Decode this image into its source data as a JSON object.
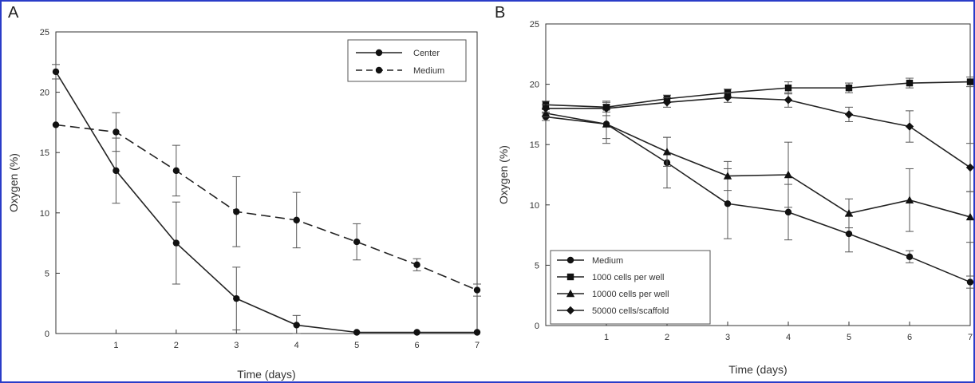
{
  "colors": {
    "frame": "#2a3cc8",
    "ink": "#333333",
    "plot_bg": "#ffffff"
  },
  "chart_data": [
    {
      "panel": "A",
      "type": "line",
      "xlabel": "Time (days)",
      "ylabel": "Oxygen (%)",
      "xlim": [
        0,
        7
      ],
      "ylim": [
        0,
        25
      ],
      "x_ticks": [
        1,
        2,
        3,
        4,
        5,
        6,
        7
      ],
      "y_ticks": [
        0,
        5,
        10,
        15,
        20,
        25
      ],
      "grid": false,
      "legend_position": "top-right",
      "x": [
        0,
        1,
        2,
        3,
        4,
        5,
        6,
        7
      ],
      "series": [
        {
          "name": "Center",
          "line_style": "solid",
          "marker": "circle",
          "values": [
            21.7,
            13.5,
            7.5,
            2.9,
            0.7,
            0.1,
            0.1,
            0.1
          ],
          "errors": [
            0.6,
            2.7,
            3.4,
            2.6,
            0.8,
            0,
            0,
            0
          ]
        },
        {
          "name": "Medium",
          "line_style": "dashed",
          "marker": "circle",
          "values": [
            17.3,
            16.7,
            13.5,
            10.1,
            9.4,
            7.6,
            5.7,
            3.6
          ],
          "errors": [
            0,
            1.6,
            2.1,
            2.9,
            2.3,
            1.5,
            0.5,
            0.5
          ]
        }
      ]
    },
    {
      "panel": "B",
      "type": "line",
      "xlabel": "Time (days)",
      "ylabel": "Oxygen (%)",
      "xlim": [
        0,
        7
      ],
      "ylim": [
        0,
        25
      ],
      "x_ticks": [
        1,
        2,
        3,
        4,
        5,
        6,
        7
      ],
      "y_ticks": [
        0,
        5,
        10,
        15,
        20,
        25
      ],
      "grid": false,
      "legend_position": "bottom-left",
      "x": [
        0,
        1,
        2,
        3,
        4,
        5,
        6,
        7
      ],
      "series": [
        {
          "name": "Medium",
          "marker": "circle",
          "values": [
            17.3,
            16.7,
            13.5,
            10.1,
            9.4,
            7.6,
            5.7,
            3.6
          ],
          "errors": [
            0.3,
            1.6,
            2.1,
            2.9,
            2.3,
            1.5,
            0.5,
            0.5
          ]
        },
        {
          "name": "1000 cells per well",
          "marker": "square",
          "values": [
            18.3,
            18.1,
            18.8,
            19.3,
            19.7,
            19.7,
            20.1,
            20.2
          ],
          "errors": [
            0.3,
            0.4,
            0.3,
            0.3,
            0.5,
            0.4,
            0.4,
            0.4
          ]
        },
        {
          "name": "10000 cells per well",
          "marker": "triangle",
          "values": [
            17.6,
            16.7,
            14.4,
            12.4,
            12.5,
            9.3,
            10.4,
            9.0
          ],
          "errors": [
            0.3,
            1.2,
            1.2,
            1.2,
            2.7,
            1.2,
            2.6,
            2.1
          ]
        },
        {
          "name": "50000 cells/scaffold",
          "marker": "diamond",
          "values": [
            18.0,
            18.0,
            18.5,
            18.9,
            18.7,
            17.5,
            16.5,
            13.1
          ],
          "errors": [
            0.3,
            0.6,
            0.4,
            0.4,
            0.6,
            0.6,
            1.3,
            2.0
          ]
        }
      ]
    }
  ]
}
